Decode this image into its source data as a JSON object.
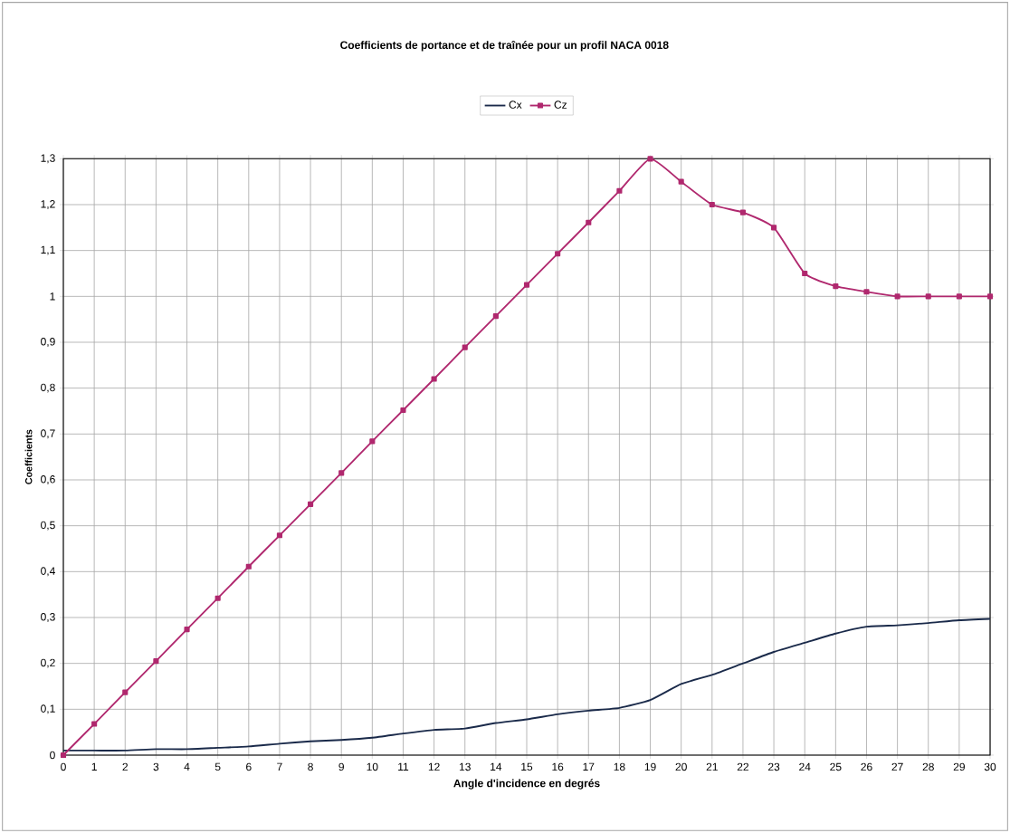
{
  "chart_data": {
    "type": "line",
    "title": "Coefficients de portance et de traînée pour un profil NACA 0018",
    "xlabel": "Angle d'incidence en degrés",
    "ylabel": "Coefficients",
    "x": [
      0,
      1,
      2,
      3,
      4,
      5,
      6,
      7,
      8,
      9,
      10,
      11,
      12,
      13,
      14,
      15,
      16,
      17,
      18,
      19,
      20,
      21,
      22,
      23,
      24,
      25,
      26,
      27,
      28,
      29,
      30
    ],
    "series": [
      {
        "name": "Cx",
        "color": "#1a2a4a",
        "marker": "none",
        "values": [
          0.01,
          0.01,
          0.01,
          0.013,
          0.013,
          0.016,
          0.019,
          0.025,
          0.03,
          0.033,
          0.038,
          0.047,
          0.055,
          0.058,
          0.07,
          0.078,
          0.089,
          0.097,
          0.103,
          0.12,
          0.155,
          0.175,
          0.2,
          0.225,
          0.245,
          0.265,
          0.28,
          0.283,
          0.288,
          0.294,
          0.297
        ]
      },
      {
        "name": "Cz",
        "color": "#b0286e",
        "marker": "square",
        "values": [
          0,
          0.068,
          0.137,
          0.205,
          0.274,
          0.342,
          0.411,
          0.479,
          0.547,
          0.615,
          0.684,
          0.752,
          0.82,
          0.889,
          0.957,
          1.025,
          1.093,
          1.161,
          1.23,
          1.3,
          1.25,
          1.2,
          1.183,
          1.15,
          1.05,
          1.022,
          1.01,
          1.0,
          1.0,
          1.0,
          1.0
        ]
      }
    ],
    "xlim": [
      0,
      30
    ],
    "xticks": [
      0,
      1,
      2,
      3,
      4,
      5,
      6,
      7,
      8,
      9,
      10,
      11,
      12,
      13,
      14,
      15,
      16,
      17,
      18,
      19,
      20,
      21,
      22,
      23,
      24,
      25,
      26,
      27,
      28,
      29,
      30
    ],
    "ylim": [
      0,
      1.3
    ],
    "yticks": [
      0,
      {
        "value": 0.1,
        "label": "0,1"
      },
      {
        "value": 0.2,
        "label": "0,2"
      },
      {
        "value": 0.3,
        "label": "0,3"
      },
      {
        "value": 0.4,
        "label": "0,4"
      },
      {
        "value": 0.5,
        "label": "0,5"
      },
      {
        "value": 0.6,
        "label": "0,6"
      },
      {
        "value": 0.7,
        "label": "0,7"
      },
      {
        "value": 0.8,
        "label": "0,8"
      },
      {
        "value": 0.9,
        "label": "0,9"
      },
      1,
      {
        "value": 1.1,
        "label": "1,1"
      },
      {
        "value": 1.2,
        "label": "1,2"
      },
      {
        "value": 1.3,
        "label": "1,3"
      }
    ],
    "grid": true,
    "legend": "top",
    "line_style": "solid"
  }
}
